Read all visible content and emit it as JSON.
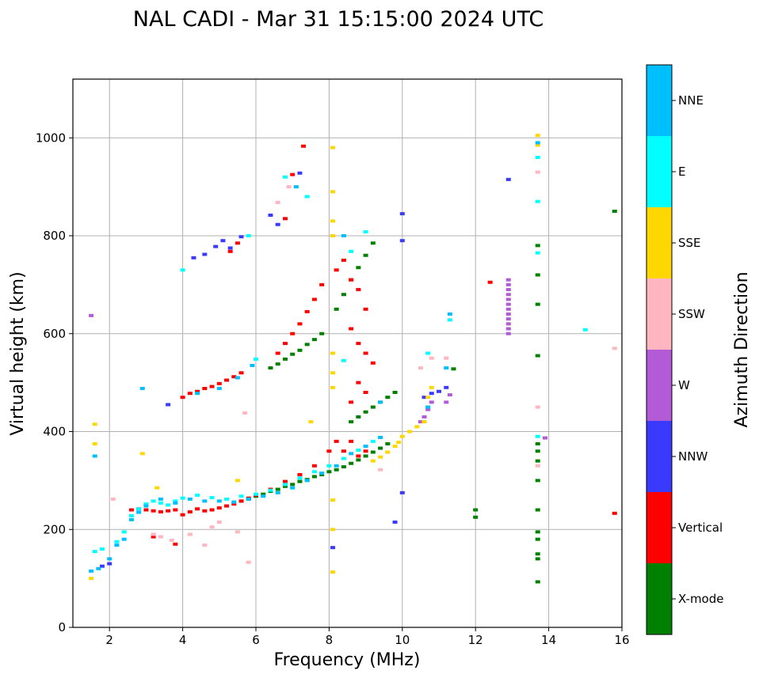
{
  "chart_data": {
    "type": "scatter",
    "title": "NAL CADI - Mar 31 15:15:00 2024 UTC",
    "xlabel": "Frequency (MHz)",
    "ylabel": "Virtual height (km)",
    "xlim": [
      1,
      16
    ],
    "ylim": [
      0,
      1120
    ],
    "xticks": [
      2,
      4,
      6,
      8,
      10,
      12,
      14,
      16
    ],
    "yticks": [
      0,
      200,
      400,
      600,
      800,
      1000
    ],
    "grid": true,
    "colorbar": {
      "label": "Azimuth Direction",
      "categories": [
        {
          "name": "X-mode",
          "color": "#008000"
        },
        {
          "name": "Vertical",
          "color": "#ff0000"
        },
        {
          "name": "NNW",
          "color": "#3a3aff"
        },
        {
          "name": "W",
          "color": "#b35ad6"
        },
        {
          "name": "SSW",
          "color": "#ffb6c1"
        },
        {
          "name": "SSE",
          "color": "#ffd700"
        },
        {
          "name": "E",
          "color": "#00ffff"
        },
        {
          "name": "NNE",
          "color": "#00bfff"
        }
      ]
    },
    "series": [
      {
        "name": "X-mode",
        "color": "#008000",
        "points": [
          [
            5.6,
            258
          ],
          [
            5.8,
            262
          ],
          [
            6.0,
            268
          ],
          [
            6.2,
            272
          ],
          [
            6.4,
            278
          ],
          [
            6.6,
            282
          ],
          [
            6.8,
            288
          ],
          [
            7.0,
            292
          ],
          [
            7.2,
            298
          ],
          [
            7.4,
            302
          ],
          [
            7.6,
            308
          ],
          [
            7.8,
            312
          ],
          [
            8.0,
            318
          ],
          [
            8.2,
            322
          ],
          [
            8.4,
            328
          ],
          [
            8.6,
            335
          ],
          [
            8.8,
            342
          ],
          [
            9.0,
            350
          ],
          [
            9.2,
            358
          ],
          [
            9.4,
            366
          ],
          [
            9.6,
            375
          ],
          [
            6.4,
            530
          ],
          [
            6.6,
            538
          ],
          [
            6.8,
            548
          ],
          [
            7.0,
            558
          ],
          [
            7.2,
            566
          ],
          [
            7.4,
            578
          ],
          [
            7.6,
            588
          ],
          [
            7.8,
            600
          ],
          [
            8.2,
            650
          ],
          [
            8.4,
            680
          ],
          [
            8.6,
            710
          ],
          [
            8.8,
            735
          ],
          [
            9.0,
            760
          ],
          [
            9.2,
            785
          ],
          [
            8.6,
            420
          ],
          [
            8.8,
            430
          ],
          [
            9.0,
            440
          ],
          [
            9.2,
            450
          ],
          [
            9.4,
            460
          ],
          [
            9.6,
            470
          ],
          [
            9.8,
            480
          ],
          [
            13.7,
            780
          ],
          [
            13.7,
            720
          ],
          [
            13.7,
            660
          ],
          [
            13.7,
            555
          ],
          [
            13.7,
            375
          ],
          [
            13.7,
            360
          ],
          [
            13.7,
            340
          ],
          [
            13.7,
            300
          ],
          [
            13.7,
            240
          ],
          [
            13.7,
            195
          ],
          [
            13.7,
            180
          ],
          [
            13.7,
            150
          ],
          [
            13.7,
            140
          ],
          [
            13.7,
            93
          ],
          [
            12.0,
            240
          ],
          [
            12.0,
            225
          ],
          [
            15.8,
            850
          ],
          [
            11.4,
            528
          ]
        ]
      },
      {
        "name": "Vertical",
        "color": "#ff0000",
        "points": [
          [
            2.6,
            240
          ],
          [
            2.8,
            242
          ],
          [
            3.0,
            240
          ],
          [
            3.2,
            238
          ],
          [
            3.4,
            236
          ],
          [
            3.6,
            238
          ],
          [
            3.8,
            240
          ],
          [
            4.0,
            230
          ],
          [
            4.2,
            236
          ],
          [
            4.4,
            242
          ],
          [
            4.6,
            238
          ],
          [
            4.8,
            240
          ],
          [
            5.0,
            244
          ],
          [
            5.2,
            248
          ],
          [
            5.4,
            252
          ],
          [
            5.6,
            258
          ],
          [
            5.8,
            264
          ],
          [
            6.0,
            270
          ],
          [
            6.4,
            282
          ],
          [
            6.8,
            298
          ],
          [
            7.2,
            312
          ],
          [
            7.6,
            330
          ],
          [
            8.0,
            360
          ],
          [
            8.2,
            380
          ],
          [
            8.4,
            360
          ],
          [
            8.6,
            380
          ],
          [
            8.8,
            350
          ],
          [
            9.0,
            360
          ],
          [
            4.0,
            470
          ],
          [
            4.2,
            478
          ],
          [
            4.4,
            482
          ],
          [
            4.6,
            488
          ],
          [
            4.8,
            492
          ],
          [
            5.0,
            498
          ],
          [
            5.2,
            505
          ],
          [
            5.4,
            512
          ],
          [
            5.6,
            520
          ],
          [
            6.6,
            560
          ],
          [
            6.8,
            580
          ],
          [
            7.0,
            600
          ],
          [
            7.2,
            620
          ],
          [
            7.4,
            645
          ],
          [
            7.6,
            670
          ],
          [
            7.8,
            700
          ],
          [
            5.3,
            768
          ],
          [
            5.5,
            785
          ],
          [
            6.8,
            835
          ],
          [
            7.3,
            983
          ],
          [
            7.0,
            925
          ],
          [
            8.6,
            610
          ],
          [
            8.8,
            580
          ],
          [
            9.0,
            560
          ],
          [
            9.2,
            540
          ],
          [
            8.8,
            500
          ],
          [
            9.0,
            480
          ],
          [
            8.6,
            460
          ],
          [
            8.8,
            690
          ],
          [
            9.0,
            650
          ],
          [
            8.6,
            710
          ],
          [
            8.2,
            730
          ],
          [
            8.4,
            750
          ],
          [
            3.2,
            185
          ],
          [
            3.8,
            170
          ],
          [
            12.4,
            705
          ],
          [
            15.8,
            233
          ]
        ]
      },
      {
        "name": "NNW",
        "color": "#3a3aff",
        "points": [
          [
            1.8,
            125
          ],
          [
            2.0,
            130
          ],
          [
            4.3,
            755
          ],
          [
            4.6,
            762
          ],
          [
            4.9,
            778
          ],
          [
            5.1,
            790
          ],
          [
            5.3,
            775
          ],
          [
            5.6,
            798
          ],
          [
            6.4,
            842
          ],
          [
            6.6,
            823
          ],
          [
            7.2,
            928
          ],
          [
            10.6,
            470
          ],
          [
            10.8,
            478
          ],
          [
            11.0,
            482
          ],
          [
            11.2,
            490
          ],
          [
            10.0,
            845
          ],
          [
            10.0,
            790
          ],
          [
            10.0,
            275
          ],
          [
            9.8,
            215
          ],
          [
            8.1,
            163
          ],
          [
            12.9,
            915
          ],
          [
            3.6,
            455
          ]
        ]
      },
      {
        "name": "W",
        "color": "#b35ad6",
        "points": [
          [
            12.9,
            710
          ],
          [
            12.9,
            700
          ],
          [
            12.9,
            690
          ],
          [
            12.9,
            680
          ],
          [
            12.9,
            670
          ],
          [
            12.9,
            660
          ],
          [
            12.9,
            650
          ],
          [
            12.9,
            640
          ],
          [
            12.9,
            630
          ],
          [
            12.9,
            620
          ],
          [
            12.9,
            610
          ],
          [
            12.9,
            600
          ],
          [
            10.5,
            420
          ],
          [
            10.6,
            430
          ],
          [
            10.7,
            445
          ],
          [
            10.8,
            460
          ],
          [
            11.2,
            460
          ],
          [
            11.3,
            475
          ],
          [
            13.9,
            387
          ],
          [
            1.5,
            637
          ]
        ]
      },
      {
        "name": "SSW",
        "color": "#ffb6c1",
        "points": [
          [
            3.2,
            190
          ],
          [
            3.4,
            185
          ],
          [
            3.7,
            178
          ],
          [
            4.2,
            190
          ],
          [
            4.6,
            168
          ],
          [
            4.8,
            205
          ],
          [
            5.0,
            215
          ],
          [
            5.5,
            195
          ],
          [
            5.7,
            438
          ],
          [
            5.8,
            133
          ],
          [
            6.6,
            868
          ],
          [
            6.9,
            900
          ],
          [
            9.4,
            322
          ],
          [
            10.5,
            530
          ],
          [
            10.8,
            550
          ],
          [
            11.2,
            550
          ],
          [
            13.7,
            930
          ],
          [
            13.7,
            450
          ],
          [
            13.7,
            330
          ],
          [
            15.8,
            570
          ],
          [
            2.1,
            262
          ]
        ]
      },
      {
        "name": "SSE",
        "color": "#ffd700",
        "points": [
          [
            8.1,
            980
          ],
          [
            8.1,
            890
          ],
          [
            8.1,
            830
          ],
          [
            8.1,
            800
          ],
          [
            8.1,
            560
          ],
          [
            8.1,
            520
          ],
          [
            8.1,
            490
          ],
          [
            8.1,
            260
          ],
          [
            8.1,
            200
          ],
          [
            8.1,
            113
          ],
          [
            9.2,
            340
          ],
          [
            9.4,
            348
          ],
          [
            9.6,
            358
          ],
          [
            9.8,
            370
          ],
          [
            9.9,
            378
          ],
          [
            10.0,
            390
          ],
          [
            10.2,
            400
          ],
          [
            10.4,
            410
          ],
          [
            10.6,
            420
          ],
          [
            10.7,
            470
          ],
          [
            10.8,
            490
          ],
          [
            1.6,
            415
          ],
          [
            1.6,
            375
          ],
          [
            1.5,
            100
          ],
          [
            13.7,
            1005
          ],
          [
            13.7,
            985
          ],
          [
            5.5,
            300
          ],
          [
            2.9,
            355
          ],
          [
            3.3,
            285
          ],
          [
            7.5,
            420
          ]
        ]
      },
      {
        "name": "E",
        "color": "#00ffff",
        "points": [
          [
            1.6,
            155
          ],
          [
            1.8,
            160
          ],
          [
            2.2,
            175
          ],
          [
            2.4,
            195
          ],
          [
            2.6,
            228
          ],
          [
            2.8,
            242
          ],
          [
            3.0,
            252
          ],
          [
            3.2,
            258
          ],
          [
            3.4,
            254
          ],
          [
            3.6,
            250
          ],
          [
            3.8,
            258
          ],
          [
            4.0,
            264
          ],
          [
            4.4,
            270
          ],
          [
            4.8,
            265
          ],
          [
            5.2,
            262
          ],
          [
            5.6,
            268
          ],
          [
            6.0,
            272
          ],
          [
            6.4,
            280
          ],
          [
            6.8,
            292
          ],
          [
            7.2,
            305
          ],
          [
            7.6,
            318
          ],
          [
            8.0,
            330
          ],
          [
            8.4,
            345
          ],
          [
            8.8,
            362
          ],
          [
            9.2,
            380
          ],
          [
            6.0,
            548
          ],
          [
            6.8,
            920
          ],
          [
            7.4,
            880
          ],
          [
            8.6,
            768
          ],
          [
            9.0,
            808
          ],
          [
            8.4,
            545
          ],
          [
            11.3,
            628
          ],
          [
            10.7,
            560
          ],
          [
            13.7,
            960
          ],
          [
            13.7,
            870
          ],
          [
            13.7,
            765
          ],
          [
            13.7,
            390
          ],
          [
            15.0,
            608
          ],
          [
            4.0,
            730
          ],
          [
            5.8,
            800
          ]
        ]
      },
      {
        "name": "NNE",
        "color": "#00bfff",
        "points": [
          [
            1.5,
            115
          ],
          [
            1.7,
            120
          ],
          [
            2.0,
            140
          ],
          [
            2.2,
            168
          ],
          [
            2.4,
            180
          ],
          [
            2.6,
            220
          ],
          [
            2.8,
            235
          ],
          [
            3.0,
            248
          ],
          [
            3.4,
            262
          ],
          [
            3.8,
            254
          ],
          [
            4.2,
            262
          ],
          [
            4.6,
            258
          ],
          [
            5.0,
            258
          ],
          [
            5.4,
            256
          ],
          [
            5.8,
            262
          ],
          [
            6.2,
            268
          ],
          [
            6.6,
            275
          ],
          [
            7.0,
            285
          ],
          [
            7.4,
            300
          ],
          [
            7.8,
            315
          ],
          [
            8.2,
            330
          ],
          [
            8.6,
            355
          ],
          [
            9.0,
            370
          ],
          [
            9.4,
            388
          ],
          [
            2.9,
            488
          ],
          [
            4.4,
            478
          ],
          [
            5.0,
            488
          ],
          [
            5.5,
            510
          ],
          [
            5.9,
            535
          ],
          [
            7.1,
            900
          ],
          [
            11.2,
            530
          ],
          [
            11.3,
            640
          ],
          [
            10.7,
            450
          ],
          [
            9.4,
            460
          ],
          [
            13.7,
            990
          ],
          [
            8.4,
            800
          ],
          [
            1.6,
            350
          ]
        ]
      }
    ]
  }
}
